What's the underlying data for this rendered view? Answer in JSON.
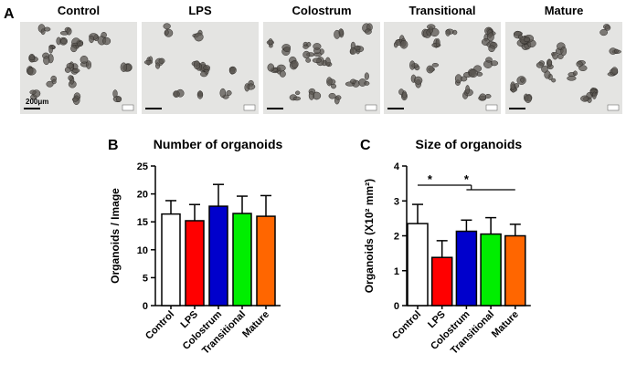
{
  "figure": {
    "panel_labels": [
      "A",
      "B",
      "C"
    ],
    "image_labels": [
      "Control",
      "LPS",
      "Colostrum",
      "Transitional",
      "Mature"
    ],
    "scale_bar": "200μm"
  },
  "chart_data": [
    {
      "type": "bar",
      "title": "Number of organoids",
      "y_label": "Organoids / Image",
      "categories": [
        "Control",
        "LPS",
        "Colostrum",
        "Transitional",
        "Mature"
      ],
      "values": [
        16.4,
        15.2,
        17.8,
        16.5,
        16.0
      ],
      "errors": [
        2.4,
        2.9,
        3.9,
        3.1,
        3.7
      ],
      "colors": [
        "#ffffff",
        "#ff0000",
        "#0000cc",
        "#00ee00",
        "#ff6600"
      ],
      "ylim": [
        0,
        25
      ],
      "yticks": [
        0,
        5,
        10,
        15,
        20,
        25
      ]
    },
    {
      "type": "bar",
      "title": "Size of organoids",
      "y_label": "Organoids (X10² mm²)",
      "categories": [
        "Control",
        "LPS",
        "Colostrum",
        "Transitional",
        "Mature"
      ],
      "values": [
        2.35,
        1.38,
        2.13,
        2.05,
        2.0
      ],
      "errors": [
        0.55,
        0.48,
        0.32,
        0.47,
        0.33
      ],
      "colors": [
        "#ffffff",
        "#ff0000",
        "#0000cc",
        "#00ee00",
        "#ff6600"
      ],
      "ylim": [
        0,
        4
      ],
      "yticks": [
        0,
        1,
        2,
        3,
        4
      ],
      "annotations": [
        "*",
        "*"
      ]
    }
  ]
}
